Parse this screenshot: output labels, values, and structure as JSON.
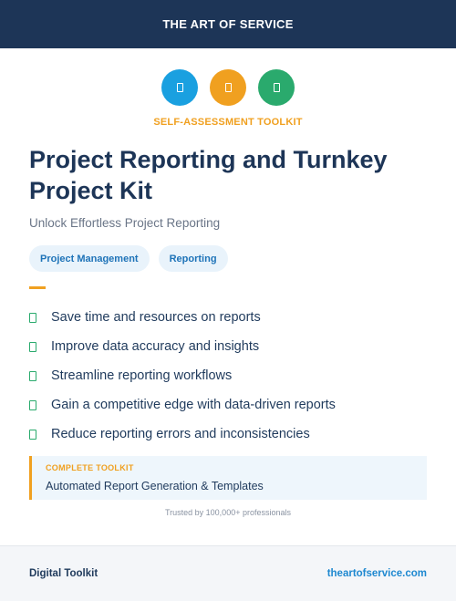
{
  "brand": {
    "banner_text": "THE ART OF SERVICE"
  },
  "icons": [
    {
      "name": "clipboard-icon",
      "color": "#1aa0e0"
    },
    {
      "name": "document-icon",
      "color": "#f0a020"
    },
    {
      "name": "book-icon",
      "color": "#2aaa6d"
    }
  ],
  "kicker": "SELF-ASSESSMENT TOOLKIT",
  "title": "Project Reporting and Turnkey Project Kit",
  "subtitle": "Unlock Effortless Project Reporting",
  "tags": [
    "Project Management",
    "Reporting"
  ],
  "benefits": [
    "Save time and resources on reports",
    "Improve data accuracy and insights",
    "Streamline reporting workflows",
    "Gain a competitive edge with data-driven reports",
    "Reduce reporting errors and inconsistencies"
  ],
  "callout": {
    "label": "COMPLETE TOOLKIT",
    "value": "Automated Report Generation & Templates"
  },
  "trusted": "Trusted by 100,000+ professionals",
  "footer": {
    "left": "Digital Toolkit",
    "right": "theartofservice.com"
  },
  "colors": {
    "navy": "#1d3557",
    "accent": "#f0a020",
    "link": "#1e88d0",
    "check": "#2aaa6d"
  }
}
